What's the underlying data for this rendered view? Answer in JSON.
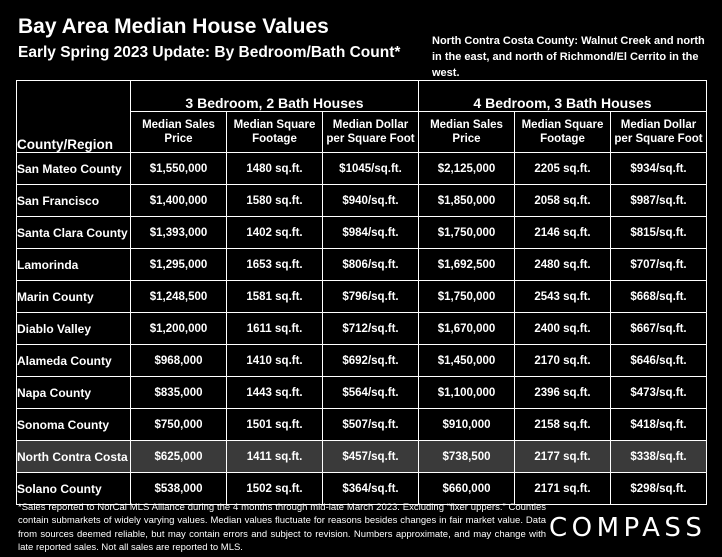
{
  "header": {
    "title": "Bay Area Median House Values",
    "subtitle": "Early Spring 2023 Update:  By Bedroom/Bath Count*",
    "note": "North Contra Costa County: Walnut Creek and north in the east, and north of Richmond/El Cerrito in the west."
  },
  "table": {
    "corner_label": "County/Region",
    "groups": [
      "3 Bedroom, 2 Bath Houses",
      "4 Bedroom, 3 Bath Houses"
    ],
    "sub_headers": [
      "Median Sales Price",
      "Median Square Footage",
      "Median Dollar per Square Foot",
      "Median Sales Price",
      "Median Square Footage",
      "Median Dollar per Square Foot"
    ],
    "rows": [
      {
        "region": "San Mateo County",
        "cells": [
          "$1,550,000",
          "1480 sq.ft.",
          "$1045/sq.ft.",
          "$2,125,000",
          "2205 sq.ft.",
          "$934/sq.ft."
        ]
      },
      {
        "region": "San Francisco",
        "cells": [
          "$1,400,000",
          "1580 sq.ft.",
          "$940/sq.ft.",
          "$1,850,000",
          "2058 sq.ft.",
          "$987/sq.ft."
        ]
      },
      {
        "region": "Santa Clara County",
        "cells": [
          "$1,393,000",
          "1402 sq.ft.",
          "$984/sq.ft.",
          "$1,750,000",
          "2146 sq.ft.",
          "$815/sq.ft."
        ]
      },
      {
        "region": "Lamorinda",
        "cells": [
          "$1,295,000",
          "1653 sq.ft.",
          "$806/sq.ft.",
          "$1,692,500",
          "2480 sq.ft.",
          "$707/sq.ft."
        ]
      },
      {
        "region": "Marin County",
        "cells": [
          "$1,248,500",
          "1581 sq.ft.",
          "$796/sq.ft.",
          "$1,750,000",
          "2543 sq.ft.",
          "$668/sq.ft."
        ]
      },
      {
        "region": "Diablo Valley",
        "cells": [
          "$1,200,000",
          "1611 sq.ft.",
          "$712/sq.ft.",
          "$1,670,000",
          "2400 sq.ft.",
          "$667/sq.ft."
        ]
      },
      {
        "region": "Alameda County",
        "cells": [
          "$968,000",
          "1410 sq.ft.",
          "$692/sq.ft.",
          "$1,450,000",
          "2170 sq.ft.",
          "$646/sq.ft."
        ]
      },
      {
        "region": "Napa County",
        "cells": [
          "$835,000",
          "1443 sq.ft.",
          "$564/sq.ft.",
          "$1,100,000",
          "2396 sq.ft.",
          "$473/sq.ft."
        ]
      },
      {
        "region": "Sonoma County",
        "cells": [
          "$750,000",
          "1501 sq.ft.",
          "$507/sq.ft.",
          "$910,000",
          "2158 sq.ft.",
          "$418/sq.ft."
        ]
      },
      {
        "region": "North Contra Costa",
        "cells": [
          "$625,000",
          "1411 sq.ft.",
          "$457/sq.ft.",
          "$738,500",
          "2177 sq.ft.",
          "$338/sq.ft."
        ],
        "highlight": true
      },
      {
        "region": "Solano County",
        "cells": [
          "$538,000",
          "1502 sq.ft.",
          "$364/sq.ft.",
          "$660,000",
          "2171 sq.ft.",
          "$298/sq.ft."
        ]
      }
    ]
  },
  "footnote": "*Sales reported to NorCal MLS Alliance during the 4 months through mid-late March 2023. Excluding “fixer uppers.” Counties contain submarkets of widely varying values. Median values fluctuate for reasons besides changes in fair market value. Data from sources deemed reliable, but may contain errors and subject to revision.  Numbers approximate, and may change with late reported sales. Not all sales are reported to MLS.",
  "logo": "COMPASS",
  "colors": {
    "background": "#000000",
    "text": "#ffffff",
    "highlight_row": "#3a3a3a"
  }
}
